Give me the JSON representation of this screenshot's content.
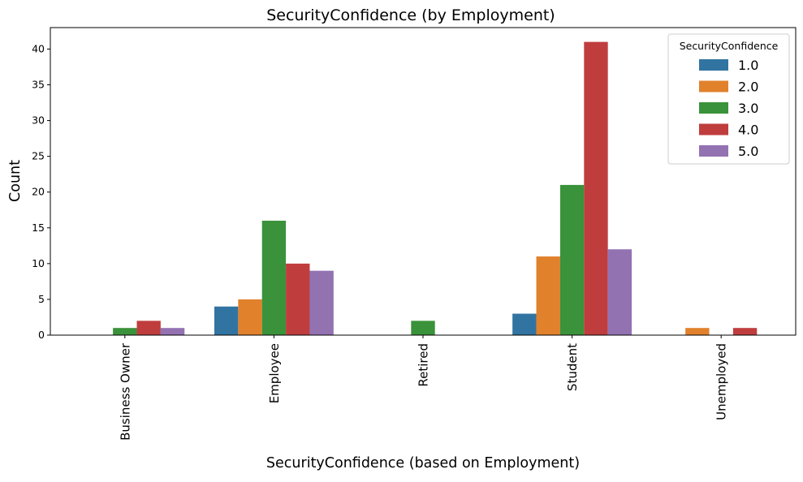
{
  "chart_data": {
    "type": "bar",
    "title": "SecurityConfidence (by Employment)",
    "xlabel": "SecurityConfidence (based on Employment)",
    "ylabel": "Count",
    "categories": [
      "Business Owner",
      "Employee",
      "Retired",
      "Student",
      "Unemployed"
    ],
    "ylim": [
      0,
      43
    ],
    "yticks": [
      "0",
      "5",
      "10",
      "15",
      "20",
      "25",
      "30",
      "35",
      "40"
    ],
    "legend_title": "SecurityConfidence",
    "legend_position": "top-right",
    "grid": false,
    "series": [
      {
        "name": "1.0",
        "color": "#3274a1",
        "values": [
          0,
          4,
          0,
          3,
          0
        ]
      },
      {
        "name": "2.0",
        "color": "#e1812c",
        "values": [
          0,
          5,
          0,
          11,
          1
        ]
      },
      {
        "name": "3.0",
        "color": "#3a923a",
        "values": [
          1,
          16,
          2,
          21,
          0
        ]
      },
      {
        "name": "4.0",
        "color": "#c03d3e",
        "values": [
          2,
          10,
          0,
          41,
          1
        ]
      },
      {
        "name": "5.0",
        "color": "#9372b2",
        "values": [
          1,
          9,
          0,
          12,
          0
        ]
      }
    ]
  }
}
